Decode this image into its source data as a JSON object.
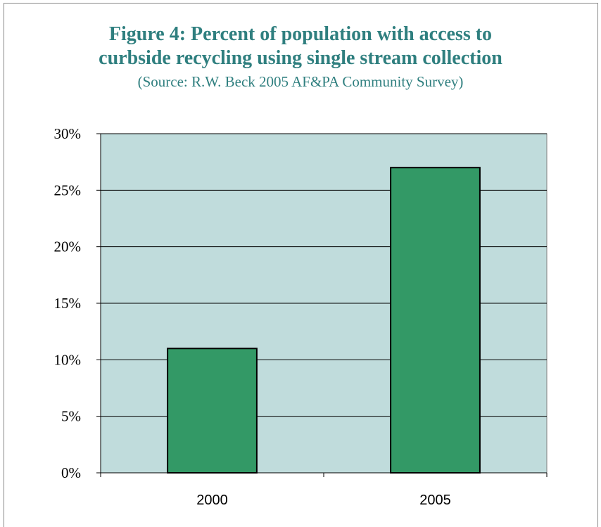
{
  "chart_data": {
    "type": "bar",
    "title": "Figure 4: Percent of population with access to curbside recycling using single stream collection",
    "title_lines": [
      "Figure 4: Percent of population with access to",
      "curbside recycling using single stream collection"
    ],
    "subtitle": "(Source: R.W. Beck  2005 AF&PA Community Survey)",
    "categories": [
      "2000",
      "2005"
    ],
    "values": [
      11,
      27
    ],
    "ylim": [
      0,
      30
    ],
    "yticks": [
      0,
      5,
      10,
      15,
      20,
      25,
      30
    ],
    "ytick_labels": [
      "0%",
      "5%",
      "10%",
      "15%",
      "20%",
      "25%",
      "30%"
    ],
    "xlabel": "",
    "ylabel": "",
    "grid": true,
    "legend": "none",
    "colors": {
      "bar": "#339966",
      "plot_background": "#c0dcdc",
      "title": "#2f7f7f"
    }
  }
}
